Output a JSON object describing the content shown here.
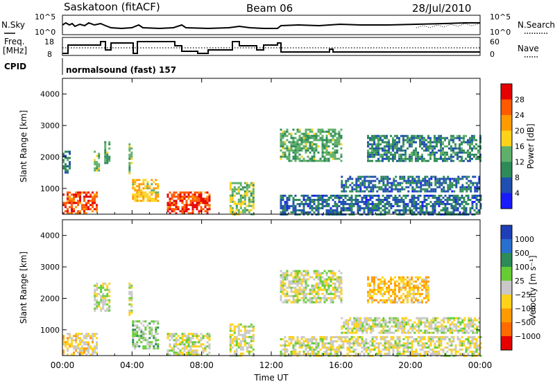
{
  "header": {
    "station": "Saskatoon (fitACF)",
    "beam": "Beam 06",
    "date": "28/Jul/2010"
  },
  "strip1": {
    "left_label": "N.Sky",
    "left_ticks": [
      "10^5",
      "10^0"
    ],
    "right_label": "N.Search",
    "right_ticks": [
      "10^5",
      "10^0"
    ]
  },
  "strip2": {
    "left_label_1": "Freq.",
    "left_label_2": "[MHz]",
    "left_ticks": [
      "18",
      "8"
    ],
    "right_label": "Nave",
    "right_ticks": [
      "60",
      "0"
    ]
  },
  "cpid": {
    "label": "CPID",
    "text": "normalsound (fast) 157"
  },
  "colors": {
    "power_scale": [
      "#1a1aff",
      "#1f4fb0",
      "#2e8b57",
      "#5fb06a",
      "#ffd21a",
      "#ff9a00",
      "#ff5a00",
      "#e60000"
    ],
    "velocity_scale": [
      "#1f3fb8",
      "#2a6fd0",
      "#2e8b57",
      "#66cc33",
      "#c8c8c8",
      "#ffd21a",
      "#ff9a00",
      "#ff6a00",
      "#e60000"
    ]
  },
  "chart_data": [
    {
      "type": "heatmap",
      "name": "power",
      "xlabel": "Time UT",
      "ylabel": "Slant Range [km]",
      "x_ticks": [
        "00:00",
        "04:00",
        "08:00",
        "12:00",
        "16:00",
        "20:00",
        "00:00"
      ],
      "x_range_hours": [
        0,
        24
      ],
      "y_ticks": [
        "1000",
        "2000",
        "3000",
        "4000"
      ],
      "ylim": [
        180,
        4500
      ],
      "colorbar": {
        "label": "Power [dB]",
        "ticks": [
          "4",
          "8",
          "12",
          "16",
          "20",
          "24",
          "28"
        ],
        "range": [
          0,
          30
        ]
      },
      "regions": [
        {
          "t": [
            0.0,
            2.0
          ],
          "r": [
            200,
            900
          ],
          "v": 25
        },
        {
          "t": [
            0.0,
            0.4
          ],
          "r": [
            1500,
            2200
          ],
          "v": 8
        },
        {
          "t": [
            1.8,
            2.1
          ],
          "r": [
            1600,
            2200
          ],
          "v": 14
        },
        {
          "t": [
            2.4,
            2.7
          ],
          "r": [
            1800,
            2500
          ],
          "v": 12
        },
        {
          "t": [
            3.8,
            4.0
          ],
          "r": [
            1500,
            2500
          ],
          "v": 13
        },
        {
          "t": [
            4.0,
            5.5
          ],
          "r": [
            600,
            1300
          ],
          "v": 18
        },
        {
          "t": [
            6.0,
            8.5
          ],
          "r": [
            200,
            900
          ],
          "v": 26
        },
        {
          "t": [
            9.6,
            11.0
          ],
          "r": [
            200,
            1200
          ],
          "v": 14
        },
        {
          "t": [
            12.5,
            16.0
          ],
          "r": [
            1900,
            2900
          ],
          "v": 12
        },
        {
          "t": [
            12.5,
            24.0
          ],
          "r": [
            200,
            800
          ],
          "v": 7
        },
        {
          "t": [
            16.0,
            24.0
          ],
          "r": [
            900,
            1400
          ],
          "v": 7
        },
        {
          "t": [
            17.5,
            24.0
          ],
          "r": [
            1900,
            2700
          ],
          "v": 9
        }
      ]
    },
    {
      "type": "heatmap",
      "name": "velocity",
      "xlabel": "Time UT",
      "ylabel": "Slant Range [km]",
      "x_ticks": [
        "00:00",
        "04:00",
        "08:00",
        "12:00",
        "16:00",
        "20:00",
        "00:00"
      ],
      "x_range_hours": [
        0,
        24
      ],
      "y_ticks": [
        "1000",
        "2000",
        "3000",
        "4000"
      ],
      "ylim": [
        180,
        4500
      ],
      "colorbar": {
        "label": "Velocity [m s⁻¹]",
        "ticks": [
          "1000",
          "500",
          "100",
          "25",
          "−25",
          "−100",
          "−500",
          "−1000"
        ],
        "range": [
          -1000,
          1000
        ]
      },
      "regions": [
        {
          "t": [
            0.0,
            2.0
          ],
          "r": [
            200,
            900
          ],
          "v": -150
        },
        {
          "t": [
            1.8,
            2.7
          ],
          "r": [
            1600,
            2500
          ],
          "v": 0
        },
        {
          "t": [
            3.8,
            4.0
          ],
          "r": [
            1500,
            2500
          ],
          "v": 0
        },
        {
          "t": [
            4.0,
            5.5
          ],
          "r": [
            400,
            1300
          ],
          "v": 150
        },
        {
          "t": [
            6.0,
            8.5
          ],
          "r": [
            200,
            900
          ],
          "v": 0
        },
        {
          "t": [
            9.6,
            11.0
          ],
          "r": [
            200,
            1200
          ],
          "v": 0
        },
        {
          "t": [
            12.5,
            16.0
          ],
          "r": [
            1900,
            2900
          ],
          "v": 0
        },
        {
          "t": [
            12.5,
            24.0
          ],
          "r": [
            200,
            800
          ],
          "v": -60
        },
        {
          "t": [
            16.0,
            24.0
          ],
          "r": [
            900,
            1400
          ],
          "v": 0
        },
        {
          "t": [
            17.5,
            21.0
          ],
          "r": [
            1900,
            2700
          ],
          "v": -300
        }
      ]
    }
  ]
}
